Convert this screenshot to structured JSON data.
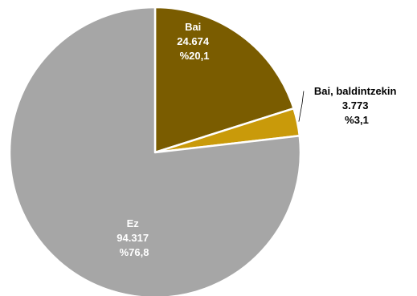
{
  "chart_data": {
    "type": "pie",
    "slices": [
      {
        "name": "Bai",
        "value": 24674,
        "value_label": "24.674",
        "percent_label": "%20,1",
        "color": "#7a5c00",
        "label_color": "#ffffff"
      },
      {
        "name": "Bai, baldintzekin",
        "value": 3773,
        "value_label": "3.773",
        "percent_label": "%3,1",
        "color": "#c99a0a",
        "label_color": "#000000"
      },
      {
        "name": "Ez",
        "value": 94317,
        "value_label": "94.317",
        "percent_label": "%76,8",
        "color": "#a6a6a6",
        "label_color": "#ffffff"
      }
    ],
    "start_angle": 0,
    "direction": "clockwise",
    "legend": "none"
  }
}
